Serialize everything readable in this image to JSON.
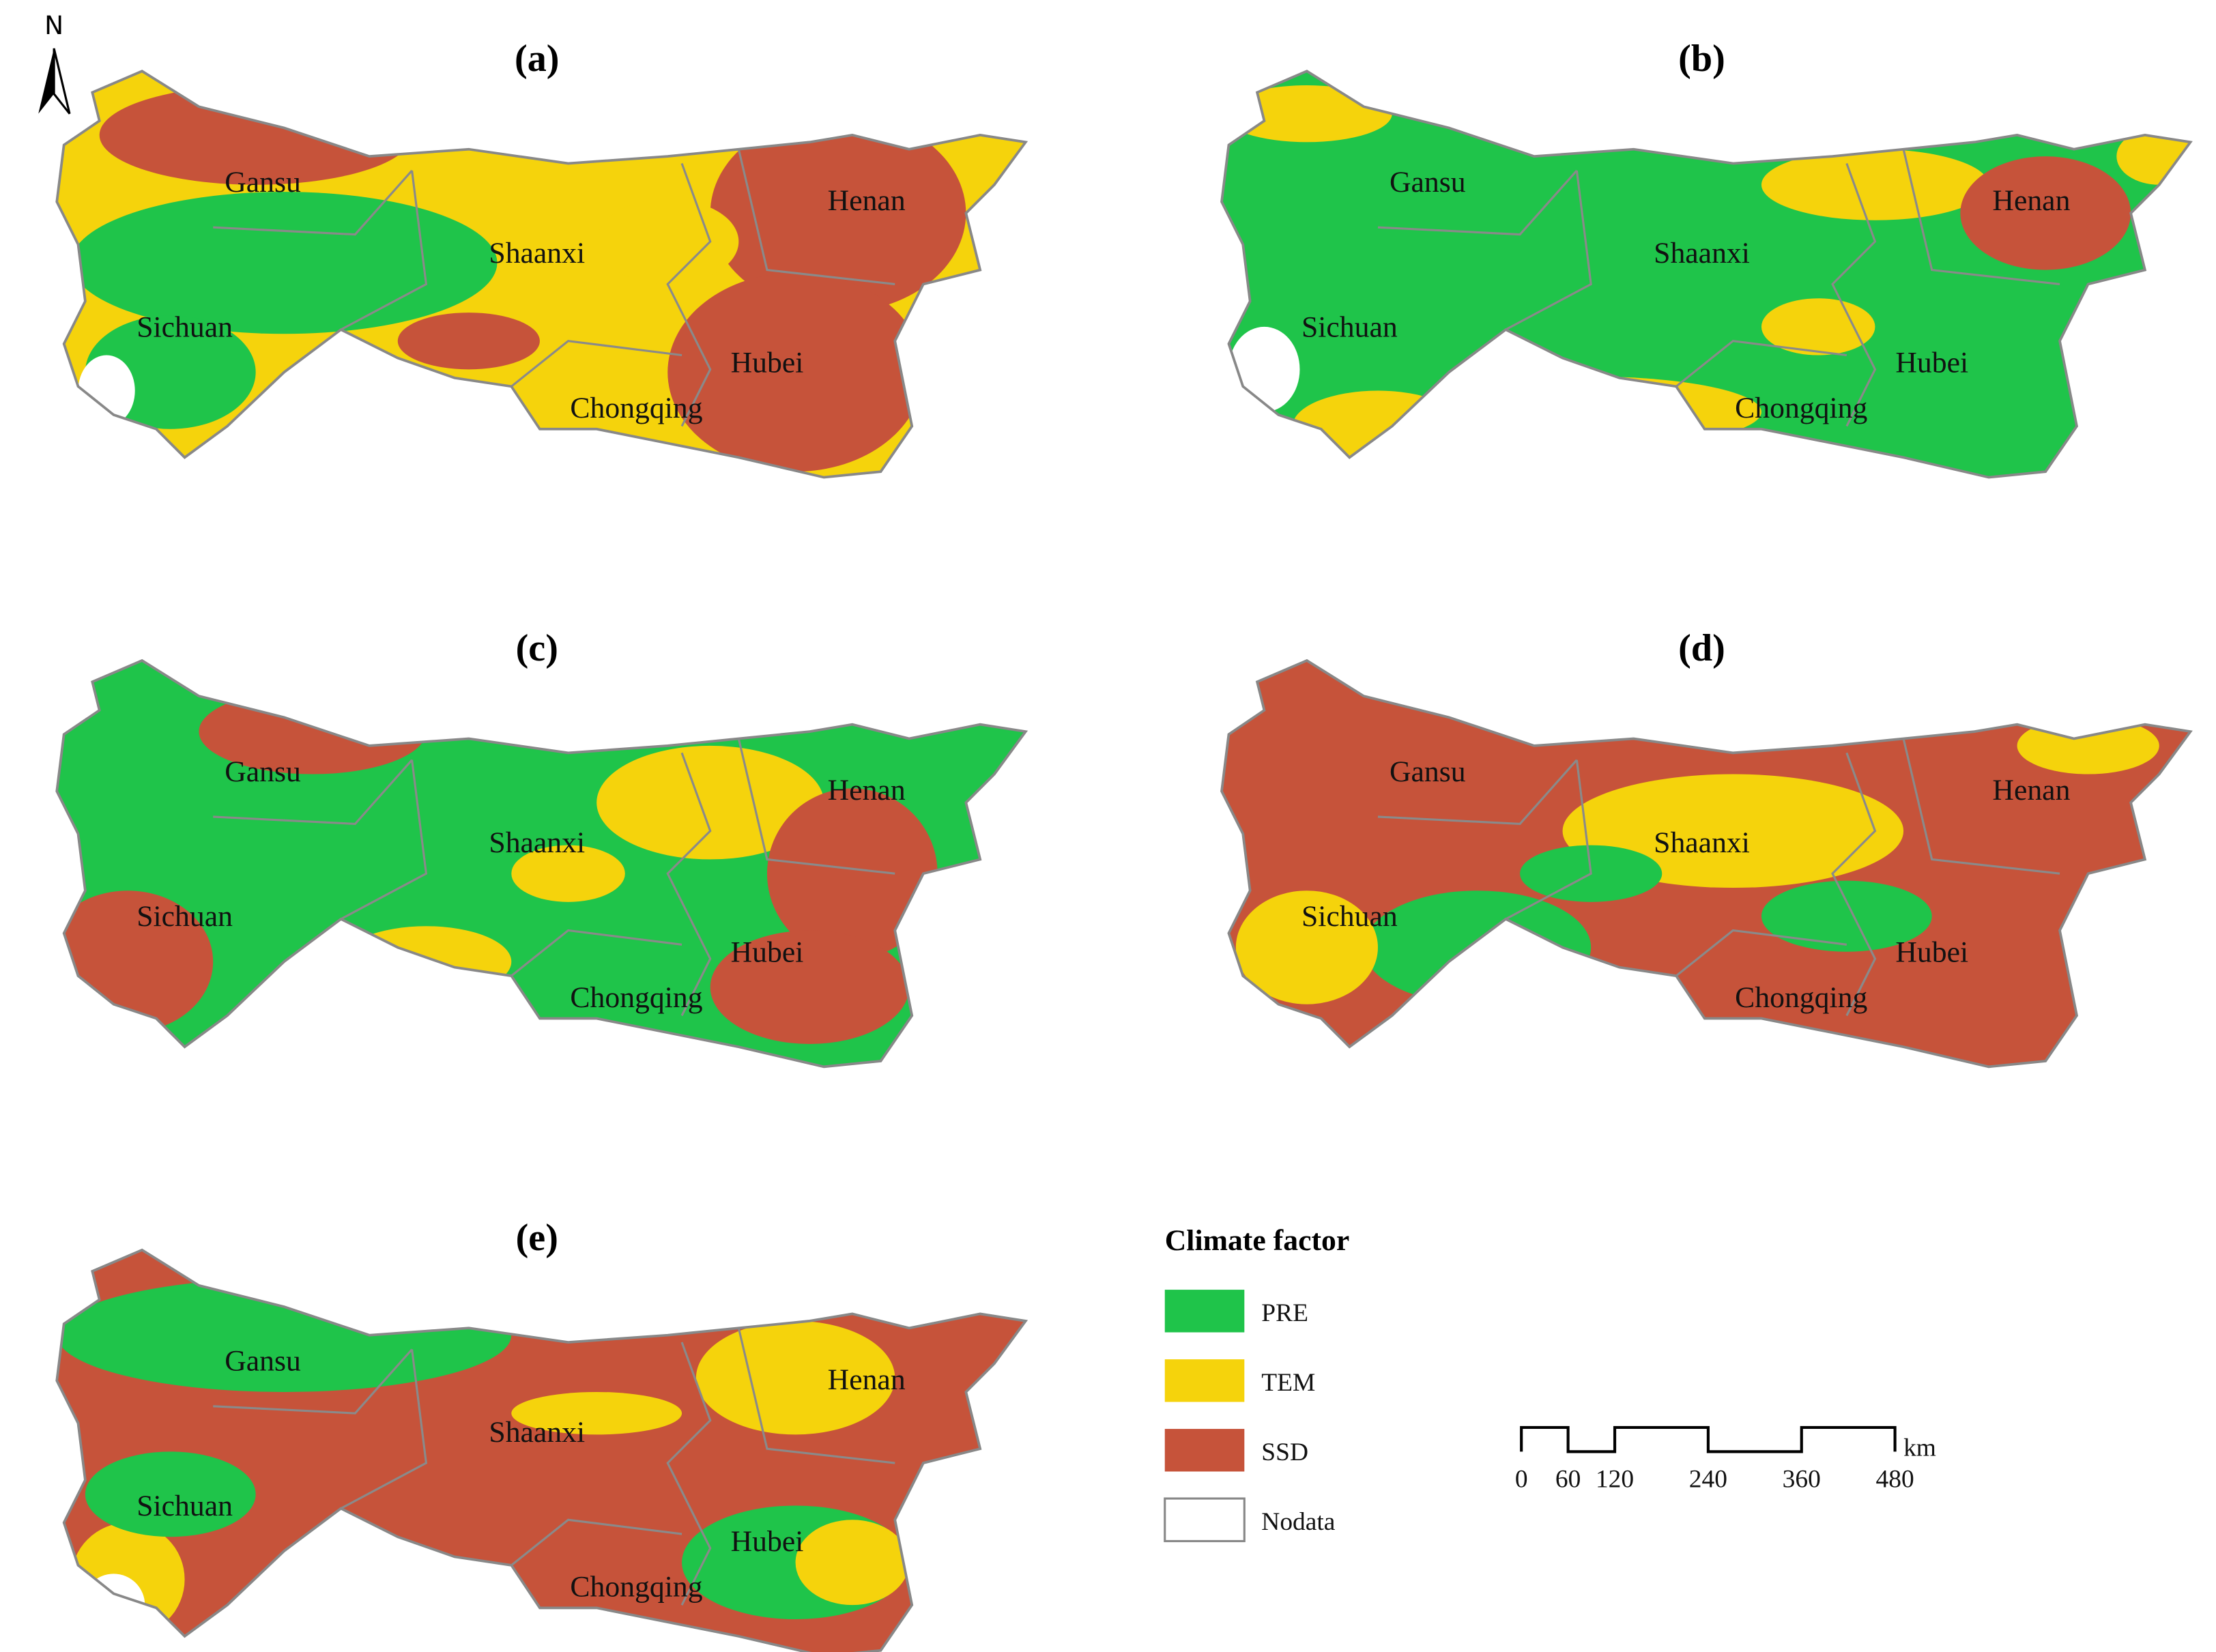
{
  "north": "N",
  "panels": [
    {
      "label": "(a)",
      "provinces": [
        "Gansu",
        "Shaanxi",
        "Henan",
        "Sichuan",
        "Hubei",
        "Chongqing"
      ]
    },
    {
      "label": "(b)",
      "provinces": [
        "Gansu",
        "Shaanxi",
        "Henan",
        "Sichuan",
        "Hubei",
        "Chongqing"
      ]
    },
    {
      "label": "(c)",
      "provinces": [
        "Gansu",
        "Shaanxi",
        "Henan",
        "Sichuan",
        "Hubei",
        "Chongqing"
      ]
    },
    {
      "label": "(d)",
      "provinces": [
        "Gansu",
        "Shaanxi",
        "Henan",
        "Sichuan",
        "Hubei",
        "Chongqing"
      ]
    },
    {
      "label": "(e)",
      "provinces": [
        "Gansu",
        "Shaanxi",
        "Henan",
        "Sichuan",
        "Hubei",
        "Chongqing"
      ]
    }
  ],
  "legend": {
    "title": "Climate factor",
    "items": [
      {
        "label": "PRE",
        "color": "#1fc44a"
      },
      {
        "label": "TEM",
        "color": "#f5d30c"
      },
      {
        "label": "SSD",
        "color": "#c6533a"
      },
      {
        "label": "Nodata",
        "color": "#ffffff"
      }
    ]
  },
  "scale_bar": {
    "ticks": [
      0,
      60,
      120,
      240,
      360,
      480
    ],
    "unit": "km"
  }
}
